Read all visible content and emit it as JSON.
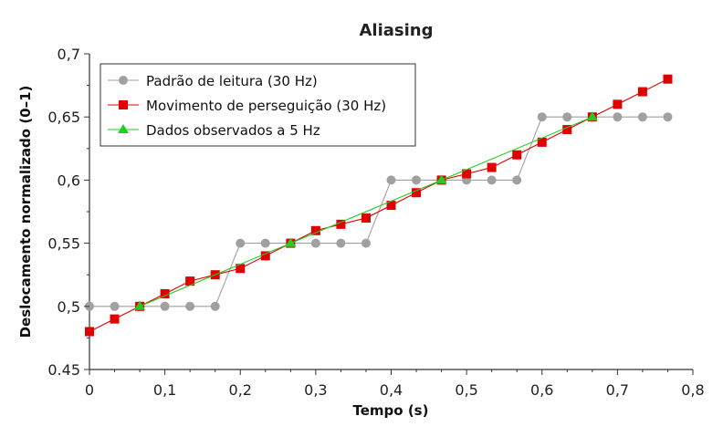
{
  "chart_data": {
    "type": "line",
    "title": "Aliasing",
    "xlabel": "Tempo (s)",
    "ylabel": "Deslocamento normalizado (0–1)",
    "xlim": [
      0,
      0.8
    ],
    "ylim": [
      0.45,
      0.7
    ],
    "x_ticks": [
      "0",
      "0,1",
      "0,2",
      "0,3",
      "0,4",
      "0,5",
      "0,6",
      "0,7",
      "0,8"
    ],
    "y_ticks": [
      "0.45",
      "0,5",
      "0,55",
      "0,6",
      "0,65",
      "0,7"
    ],
    "grid": false,
    "legend_position": "top-left",
    "series": [
      {
        "name": "Padrão de leitura (30 Hz)",
        "color": "#a0a0a0",
        "marker": "circle",
        "x": [
          0,
          0.0333,
          0.0667,
          0.1,
          0.1333,
          0.1667,
          0.2,
          0.2333,
          0.2667,
          0.3,
          0.3333,
          0.3667,
          0.4,
          0.4333,
          0.4667,
          0.5,
          0.5333,
          0.5667,
          0.6,
          0.6333,
          0.6667,
          0.7,
          0.7333,
          0.7667
        ],
        "y": [
          0.5,
          0.5,
          0.5,
          0.5,
          0.5,
          0.5,
          0.55,
          0.55,
          0.55,
          0.55,
          0.55,
          0.55,
          0.6,
          0.6,
          0.6,
          0.6,
          0.6,
          0.6,
          0.65,
          0.65,
          0.65,
          0.65,
          0.65,
          0.65
        ]
      },
      {
        "name": "Movimento de perseguição (30 Hz)",
        "color": "#e00000",
        "marker": "square",
        "x": [
          0,
          0.0333,
          0.0667,
          0.1,
          0.1333,
          0.1667,
          0.2,
          0.2333,
          0.2667,
          0.3,
          0.3333,
          0.3667,
          0.4,
          0.4333,
          0.4667,
          0.5,
          0.5333,
          0.5667,
          0.6,
          0.6333,
          0.6667,
          0.7,
          0.7333,
          0.7667
        ],
        "y": [
          0.48,
          0.49,
          0.5,
          0.51,
          0.52,
          0.525,
          0.53,
          0.54,
          0.55,
          0.56,
          0.565,
          0.57,
          0.58,
          0.59,
          0.6,
          0.605,
          0.61,
          0.62,
          0.63,
          0.64,
          0.65,
          0.66,
          0.67,
          0.68
        ]
      },
      {
        "name": "Dados observados a 5 Hz",
        "color": "#22cc22",
        "marker": "triangle",
        "x": [
          0.0667,
          0.2667,
          0.4667,
          0.6667
        ],
        "y": [
          0.5,
          0.55,
          0.6,
          0.65
        ]
      }
    ]
  }
}
